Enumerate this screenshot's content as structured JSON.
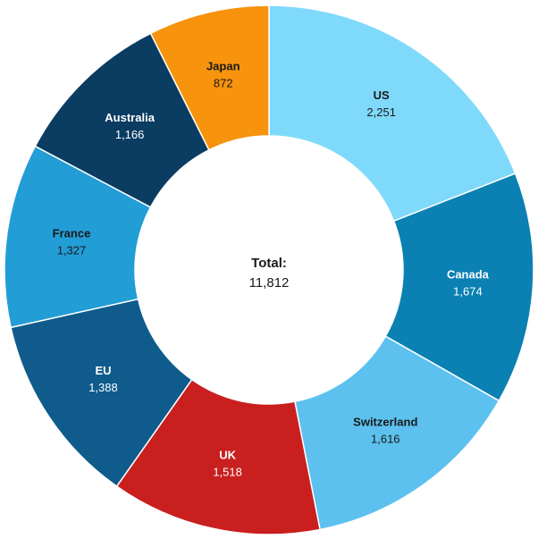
{
  "chart_data": {
    "type": "donut",
    "categories": [
      "US",
      "Canada",
      "Switzerland",
      "UK",
      "EU",
      "France",
      "Australia",
      "Japan"
    ],
    "values": [
      2251,
      1674,
      1616,
      1518,
      1388,
      1327,
      1166,
      872
    ],
    "value_labels": [
      "2,251",
      "1,674",
      "1,616",
      "1,518",
      "1,388",
      "1,327",
      "1,166",
      "872"
    ],
    "colors": [
      "#7fd9fb",
      "#0b80b2",
      "#5cc1ef",
      "#c91f1f",
      "#0f5b8b",
      "#229dd6",
      "#0b3c62",
      "#f7930d"
    ],
    "label_colors": [
      "#1a1a1a",
      "#ffffff",
      "#1a1a1a",
      "#ffffff",
      "#ffffff",
      "#1a1a1a",
      "#ffffff",
      "#1a1a1a"
    ],
    "total": {
      "label": "Total:",
      "value": 11812,
      "value_label": "11,812"
    }
  }
}
